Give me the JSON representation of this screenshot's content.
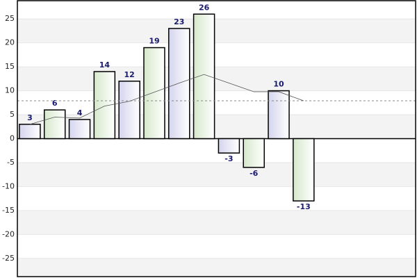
{
  "chart_data": {
    "type": "bar",
    "values": [
      3,
      6,
      4,
      14,
      12,
      19,
      23,
      26,
      -3,
      -6,
      10,
      -13
    ],
    "colors": [
      "#d4d4ee",
      "#d6e8cc"
    ],
    "line": {
      "values": [
        3,
        4.5,
        4.3,
        6.8,
        7.8,
        9.7,
        11.6,
        13.4,
        11.6,
        9.8,
        9.8,
        7.9
      ],
      "color": "#555555"
    },
    "reference_line": {
      "value": 7.9,
      "color": "#888888"
    },
    "ylim": [
      -28.8,
      28.8
    ],
    "yticks": [
      -25,
      -20,
      -15,
      -10,
      -5,
      0,
      5,
      10,
      15,
      20,
      25
    ],
    "grid": true
  }
}
